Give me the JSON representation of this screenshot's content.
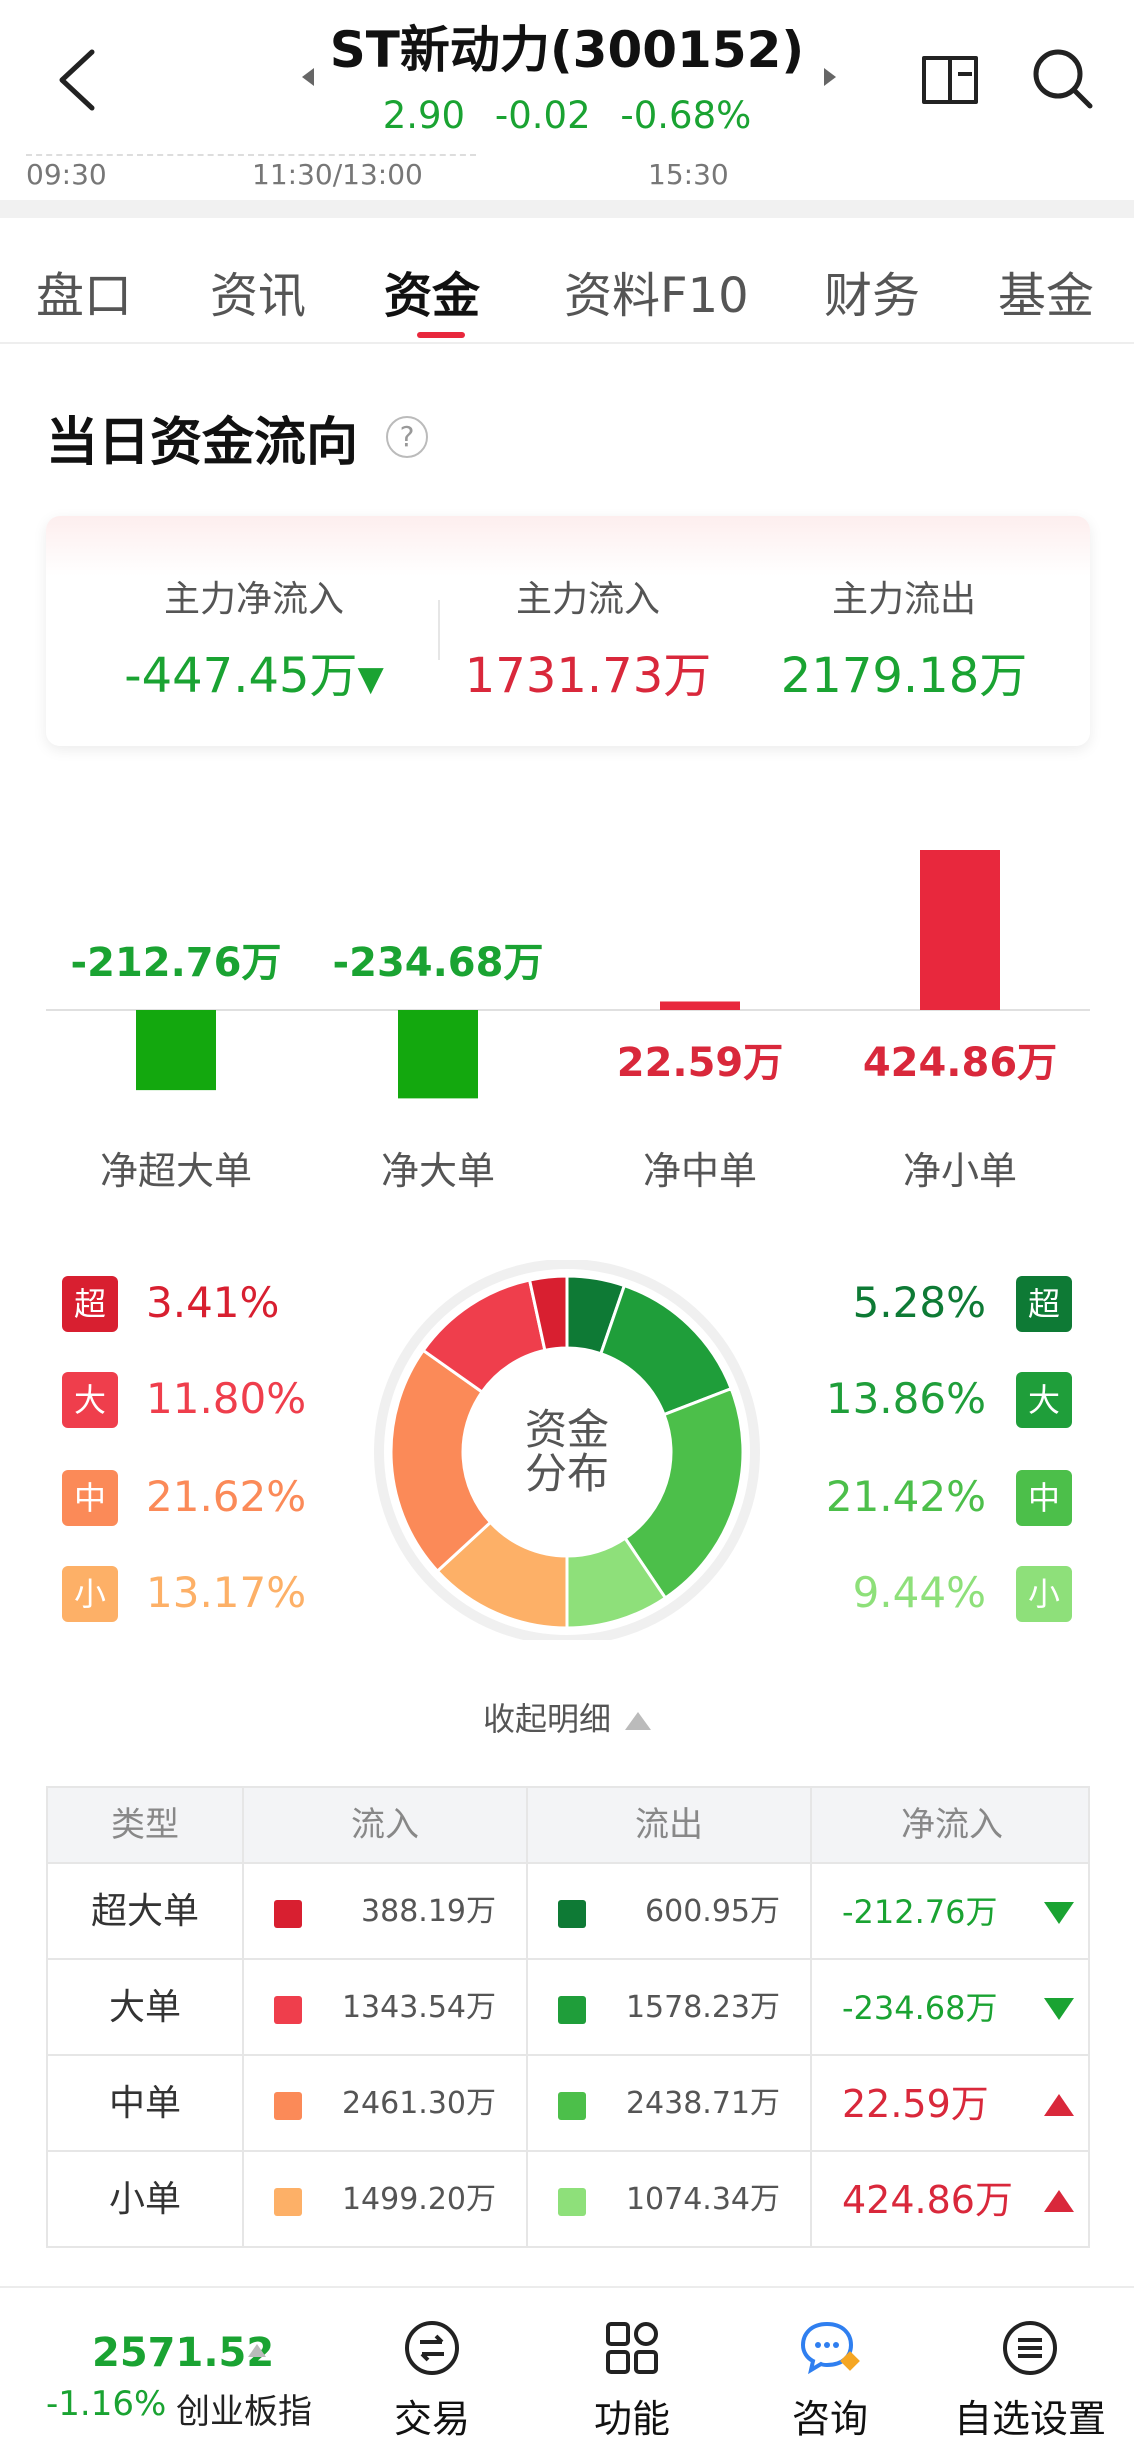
{
  "header": {
    "title": "ST新动力(300152)",
    "price": "2.90",
    "change": "-0.02",
    "change_pct": "-0.68%",
    "times": [
      "09:30",
      "11:30/13:00",
      "15:30"
    ]
  },
  "tabs": [
    {
      "label": "盘口",
      "active": false
    },
    {
      "label": "资讯",
      "active": false
    },
    {
      "label": "资金",
      "active": true
    },
    {
      "label": "资料F10",
      "active": false
    },
    {
      "label": "财务",
      "active": false
    },
    {
      "label": "基金",
      "active": false
    }
  ],
  "section_title": "当日资金流向",
  "help_label": "?",
  "summary": {
    "net_inflow_label": "主力净流入",
    "net_inflow_value": "-447.45万",
    "inflow_label": "主力流入",
    "inflow_value": "1731.73万",
    "outflow_label": "主力流出",
    "outflow_value": "2179.18万"
  },
  "chart_data": {
    "type": "bar",
    "categories": [
      "净超大单",
      "净大单",
      "净中单",
      "净小单"
    ],
    "values": [
      -212.76,
      -234.68,
      22.59,
      424.86
    ],
    "value_labels": [
      "-212.76万",
      "-234.68万",
      "22.59万",
      "424.86万"
    ],
    "unit": "万",
    "colors": {
      "positive": "#e8283d",
      "negative": "#13a80e"
    }
  },
  "distribution": {
    "center_label_1": "资金",
    "center_label_2": "分布",
    "inflow": [
      {
        "badge": "超",
        "pct": "3.41%",
        "value": 3.41,
        "color": "#d81f30"
      },
      {
        "badge": "大",
        "pct": "11.80%",
        "value": 11.8,
        "color": "#ef3e4c"
      },
      {
        "badge": "中",
        "pct": "21.62%",
        "value": 21.62,
        "color": "#fb8a58"
      },
      {
        "badge": "小",
        "pct": "13.17%",
        "value": 13.17,
        "color": "#fdb067"
      }
    ],
    "outflow": [
      {
        "badge": "超",
        "pct": "5.28%",
        "value": 5.28,
        "color": "#0e7a35"
      },
      {
        "badge": "大",
        "pct": "13.86%",
        "value": 13.86,
        "color": "#1f9e3a"
      },
      {
        "badge": "中",
        "pct": "21.42%",
        "value": 21.42,
        "color": "#4cbf4a"
      },
      {
        "badge": "小",
        "pct": "9.44%",
        "value": 9.44,
        "color": "#8ee07a"
      }
    ]
  },
  "collapse_label": "收起明细",
  "table": {
    "headers": [
      "类型",
      "流入",
      "流出",
      "净流入"
    ],
    "rows": [
      {
        "type": "超大单",
        "inflow": "388.19万",
        "outflow": "600.95万",
        "net": "-212.76万",
        "dir": "down",
        "in_color": "#d81f30",
        "out_color": "#0e7a35"
      },
      {
        "type": "大单",
        "inflow": "1343.54万",
        "outflow": "1578.23万",
        "net": "-234.68万",
        "dir": "down",
        "in_color": "#ef3e4c",
        "out_color": "#1f9e3a"
      },
      {
        "type": "中单",
        "inflow": "2461.30万",
        "outflow": "2438.71万",
        "net": "22.59万",
        "dir": "up",
        "in_color": "#fb8a58",
        "out_color": "#4cbf4a"
      },
      {
        "type": "小单",
        "inflow": "1499.20万",
        "outflow": "1074.34万",
        "net": "424.86万",
        "dir": "up",
        "in_color": "#fdb067",
        "out_color": "#8ee07a"
      }
    ]
  },
  "bottom_bar": {
    "index_value": "2571.52",
    "index_change": "-1.16%",
    "index_name": "创业板指",
    "nav": [
      {
        "label": "交易",
        "icon": "exchange-icon"
      },
      {
        "label": "功能",
        "icon": "grid-icon"
      },
      {
        "label": "咨询",
        "icon": "chat-icon"
      },
      {
        "label": "自选设置",
        "icon": "menu-icon"
      }
    ]
  }
}
